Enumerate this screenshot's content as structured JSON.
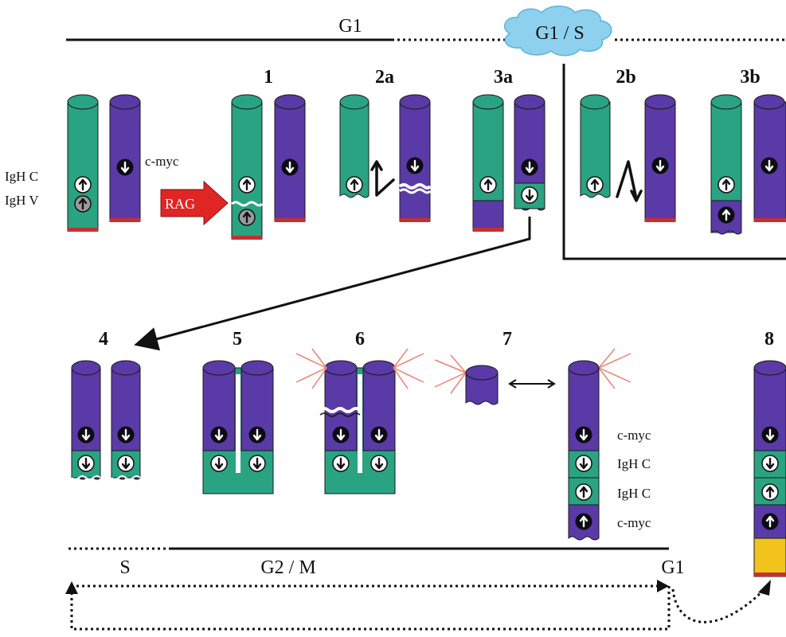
{
  "phases": {
    "g1_top": "G1",
    "g1s": "G1 / S",
    "s": "S",
    "g2m": "G2 / M",
    "g1_bottom": "G1"
  },
  "steps": {
    "s1": "1",
    "s2a": "2a",
    "s3a": "3a",
    "s2b": "2b",
    "s3b": "3b",
    "s4": "4",
    "s5": "5",
    "s6": "6",
    "s7": "7",
    "s8": "8"
  },
  "labels": {
    "igh_c": "IgH C",
    "igh_v": "IgH V",
    "cmyc_top": "c-myc",
    "rag": "RAG"
  },
  "legend": [
    "c-myc",
    "IgH C",
    "IgH C",
    "c-myc"
  ],
  "colors": {
    "green": "#2aa382",
    "purple": "#5a3aa6",
    "red_band": "#c43030",
    "rag_red": "#e02525",
    "cloud": "#7fcbea",
    "yellow": "#f2c31c"
  }
}
